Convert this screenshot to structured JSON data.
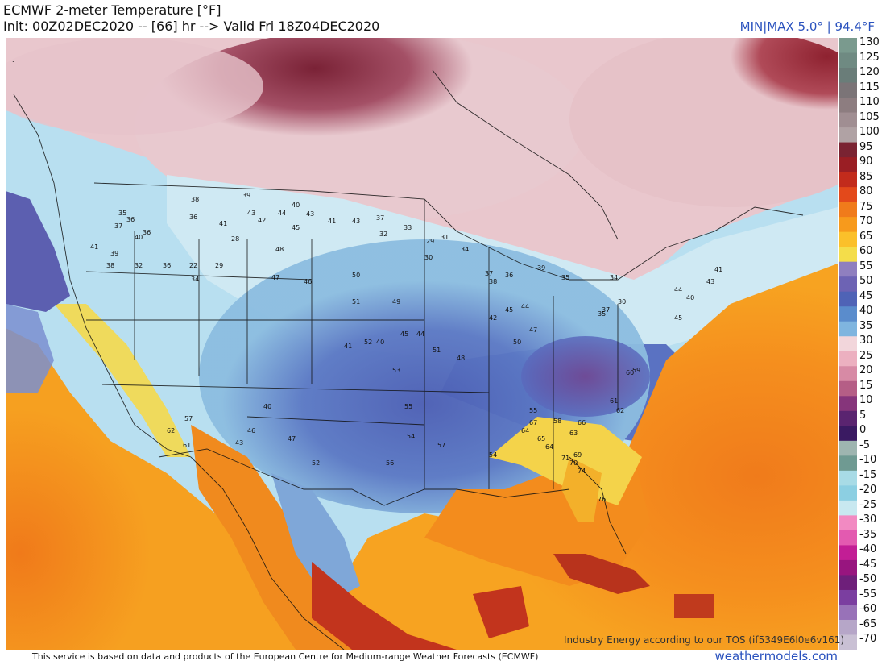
{
  "header": {
    "title_line1": "ECMWF 2-meter Temperature [°F]",
    "title_line2": "Init: 00Z02DEC2020 -- [66] hr --> Valid Fri 18Z04DEC2020",
    "minmax": "MIN|MAX 5.0° | 94.4°F"
  },
  "footer": {
    "attribution": "This service is based on data and products of the European Centre for Medium-range Weather Forecasts (ECMWF)",
    "brand": "weathermodels.com",
    "tos": "Industry Energy according to our TOS (if5349E6l0e6v161)"
  },
  "legend": {
    "labels": [
      "130",
      "125",
      "120",
      "115",
      "110",
      "105",
      "100",
      "95",
      "90",
      "85",
      "80",
      "75",
      "70",
      "65",
      "60",
      "55",
      "50",
      "45",
      "40",
      "35",
      "30",
      "25",
      "20",
      "15",
      "10",
      "5",
      "0",
      "-5",
      "-10",
      "-15",
      "-20",
      "-25",
      "-30",
      "-35",
      "-40",
      "-45",
      "-50",
      "-55",
      "-60",
      "-65",
      "-70"
    ],
    "colors": [
      "#7a9a8e",
      "#6f8a82",
      "#6a7d79",
      "#7b7477",
      "#8d7d80",
      "#a08e92",
      "#b0a2a4",
      "#7a2332",
      "#9a1e24",
      "#c22b1c",
      "#e3491b",
      "#f07b1b",
      "#f79a1c",
      "#fbc02a",
      "#f4dd4a",
      "#8f7fbf",
      "#6d63b4",
      "#4f63b6",
      "#5a8ccc",
      "#7fb5df",
      "#f2d6db",
      "#ecb0c0",
      "#d78aa5",
      "#b55e86",
      "#86357b",
      "#5a2470",
      "#3a1a62",
      "#9eb5b0",
      "#6f9a92",
      "#a8dbe6",
      "#8ccfe2",
      "#c8e8f0",
      "#f28ac2",
      "#e35ab0",
      "#c21e95",
      "#98157f",
      "#6e1f7a",
      "#7b3ea0",
      "#9872b8",
      "#b6a6c8",
      "#c9c0d4"
    ]
  },
  "map": {
    "stations": [
      {
        "t": "36"
      },
      {
        "t": "35"
      },
      {
        "t": "37"
      },
      {
        "t": "36"
      },
      {
        "t": "40"
      },
      {
        "t": "41"
      },
      {
        "t": "39"
      },
      {
        "t": "38"
      },
      {
        "t": "32"
      },
      {
        "t": "36"
      },
      {
        "t": "22"
      },
      {
        "t": "29"
      },
      {
        "t": "28"
      },
      {
        "t": "34"
      },
      {
        "t": "39"
      },
      {
        "t": "38"
      },
      {
        "t": "36"
      },
      {
        "t": "41"
      },
      {
        "t": "43"
      },
      {
        "t": "42"
      },
      {
        "t": "44"
      },
      {
        "t": "40"
      },
      {
        "t": "43"
      },
      {
        "t": "45"
      },
      {
        "t": "41"
      },
      {
        "t": "43"
      },
      {
        "t": "37"
      },
      {
        "t": "32"
      },
      {
        "t": "33"
      },
      {
        "t": "29"
      },
      {
        "t": "31"
      },
      {
        "t": "30"
      },
      {
        "t": "34"
      },
      {
        "t": "37"
      },
      {
        "t": "36"
      },
      {
        "t": "38"
      },
      {
        "t": "39"
      },
      {
        "t": "35"
      },
      {
        "t": "48"
      },
      {
        "t": "47"
      },
      {
        "t": "46"
      },
      {
        "t": "50"
      },
      {
        "t": "51"
      },
      {
        "t": "49"
      },
      {
        "t": "52"
      },
      {
        "t": "53"
      },
      {
        "t": "55"
      },
      {
        "t": "56"
      },
      {
        "t": "54"
      },
      {
        "t": "57"
      },
      {
        "t": "59"
      },
      {
        "t": "60"
      },
      {
        "t": "61"
      },
      {
        "t": "62"
      },
      {
        "t": "64"
      },
      {
        "t": "66"
      },
      {
        "t": "67"
      },
      {
        "t": "63"
      },
      {
        "t": "69"
      },
      {
        "t": "70"
      },
      {
        "t": "71"
      },
      {
        "t": "74"
      },
      {
        "t": "76"
      },
      {
        "t": "45"
      },
      {
        "t": "44"
      },
      {
        "t": "47"
      },
      {
        "t": "50"
      },
      {
        "t": "51"
      },
      {
        "t": "48"
      },
      {
        "t": "45"
      },
      {
        "t": "40"
      },
      {
        "t": "41"
      },
      {
        "t": "44"
      },
      {
        "t": "42"
      },
      {
        "t": "37"
      },
      {
        "t": "30"
      },
      {
        "t": "44"
      },
      {
        "t": "40"
      },
      {
        "t": "43"
      },
      {
        "t": "41"
      },
      {
        "t": "45"
      },
      {
        "t": "35"
      },
      {
        "t": "34"
      },
      {
        "t": "40"
      },
      {
        "t": "57"
      },
      {
        "t": "62"
      },
      {
        "t": "61"
      },
      {
        "t": "43"
      },
      {
        "t": "46"
      },
      {
        "t": "47"
      },
      {
        "t": "52"
      },
      {
        "t": "55"
      },
      {
        "t": "58"
      },
      {
        "t": "65"
      },
      {
        "t": "64"
      },
      {
        "t": "54"
      }
    ]
  }
}
